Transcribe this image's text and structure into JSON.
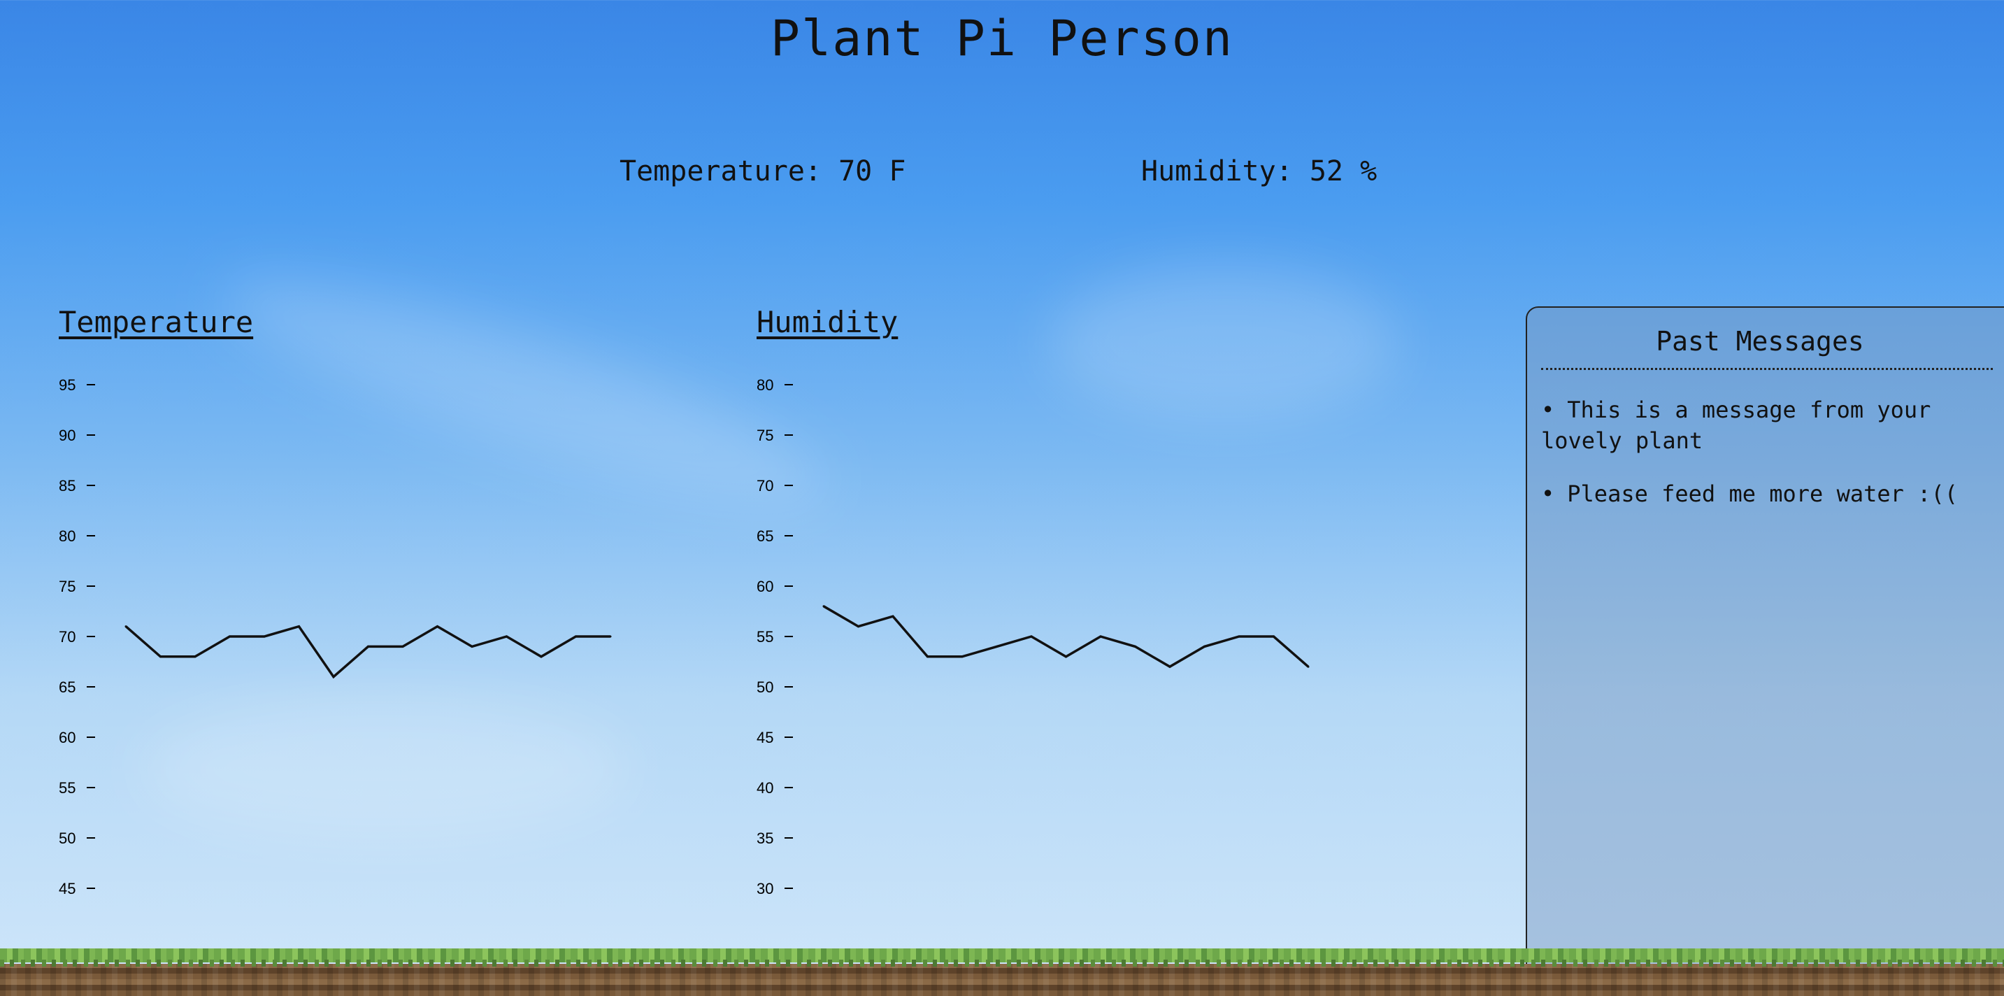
{
  "app": {
    "title": "Plant Pi Person"
  },
  "readings": {
    "temperature": "Temperature: 70 F",
    "humidity": "Humidity: 52 %"
  },
  "chart_data": [
    {
      "type": "line",
      "title": "Temperature",
      "xlabel": "",
      "ylabel": "",
      "ylim": [
        45,
        95
      ],
      "yticks": [
        95,
        90,
        85,
        80,
        75,
        70,
        65,
        60,
        55,
        50,
        45
      ],
      "grid": false,
      "values": [
        71,
        68,
        68,
        70,
        70,
        71,
        66,
        69,
        69,
        71,
        69,
        70,
        68,
        70,
        70
      ]
    },
    {
      "type": "line",
      "title": "Humidity",
      "xlabel": "",
      "ylabel": "",
      "ylim": [
        30,
        80
      ],
      "yticks": [
        80,
        75,
        70,
        65,
        60,
        55,
        50,
        45,
        40,
        35,
        30
      ],
      "grid": false,
      "values": [
        58,
        56,
        57,
        53,
        53,
        54,
        55,
        53,
        55,
        54,
        52,
        54,
        55,
        55,
        52
      ]
    }
  ],
  "messages": {
    "title": "Past Messages",
    "items": [
      "This is a message from your lovely plant",
      "Please feed me more water :(("
    ]
  },
  "colors": {
    "sky_top": "#3a86e6",
    "sky_bottom": "#cfe6fa",
    "line": "#111111",
    "grass": "#7db653",
    "dirt": "#7a5a3a"
  }
}
